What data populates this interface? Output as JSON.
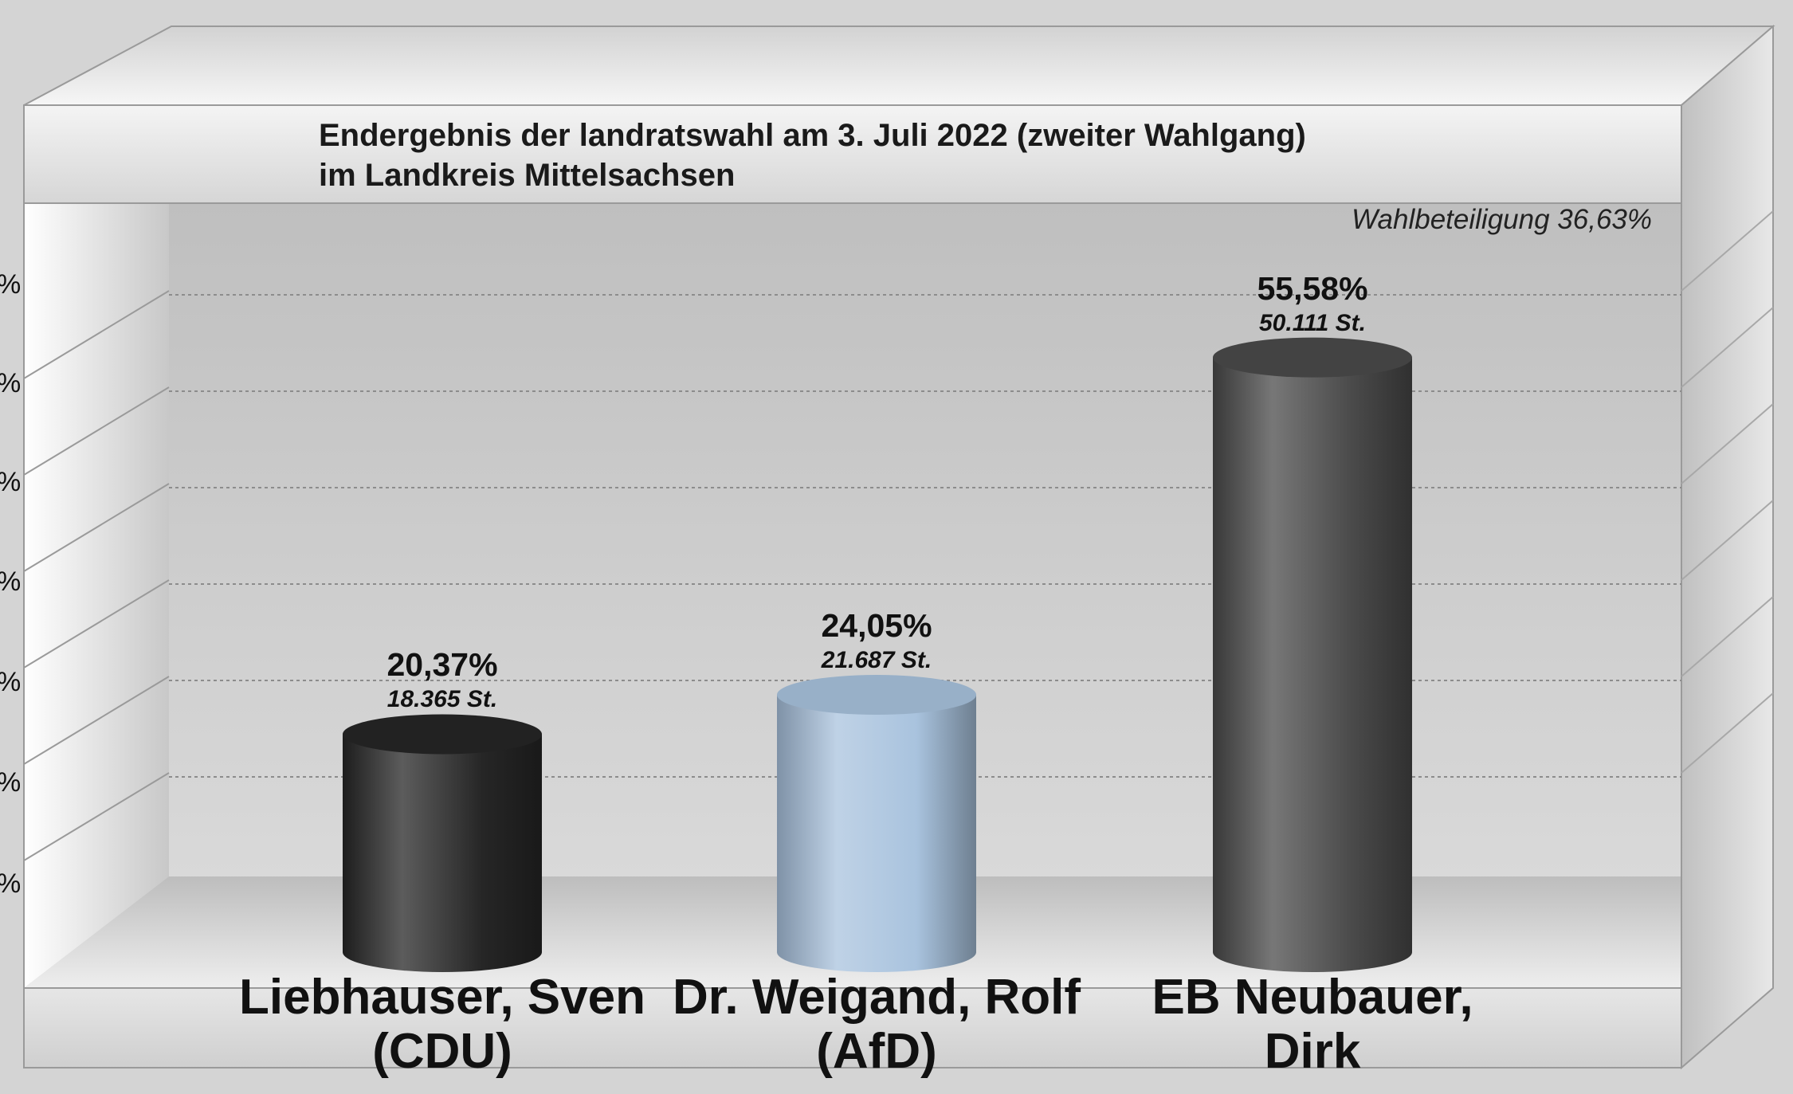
{
  "title": {
    "line1": "Endergebnis der landratswahl am 3. Juli 2022 (zweiter Wahlgang)",
    "line2": "im Landkreis Mittelsachsen"
  },
  "turnout": "Wahlbeteiligung 36,63%",
  "y_axis_ticks_visible": [
    "%",
    "%",
    "%",
    "%",
    "%",
    "%",
    "%"
  ],
  "chart_data": {
    "type": "bar",
    "style": "3d-cylinder",
    "grid": true,
    "categories": [
      [
        "Liebhauser, Sven",
        "(CDU)"
      ],
      [
        "Dr. Weigand, Rolf",
        "(AfD)"
      ],
      [
        "EB Neubauer,",
        "Dirk"
      ]
    ],
    "values": [
      20.37,
      24.05,
      55.58
    ],
    "value_labels": [
      "20,37%",
      "24,05%",
      "55,58%"
    ],
    "votes": [
      18365,
      21687,
      50111
    ],
    "vote_labels": [
      "18.365 St.",
      "21.687 St.",
      "50.111 St."
    ],
    "colors": [
      "#262626",
      "#a9c3de",
      "#4a4a4a"
    ],
    "ylim": [
      0,
      70
    ]
  }
}
